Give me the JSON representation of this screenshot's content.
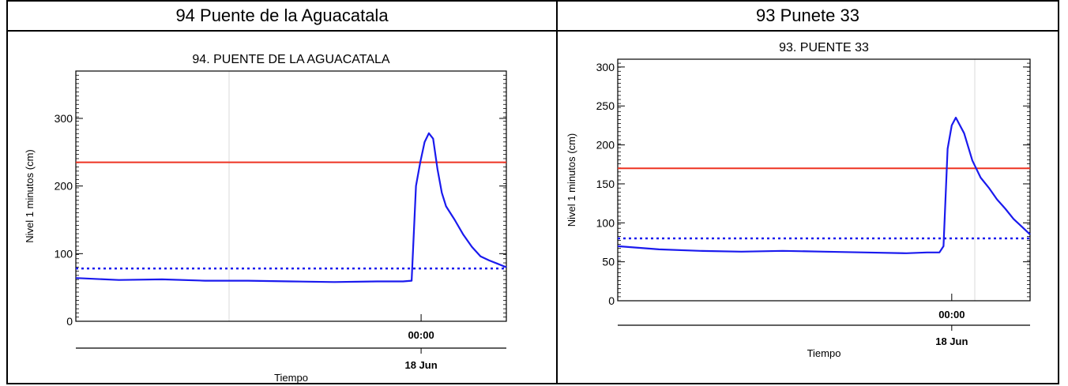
{
  "headers": {
    "left": "94 Puente de la Aguacatala",
    "right": "93 Punete 33"
  },
  "chart_data": [
    {
      "type": "line",
      "title": "94. PUENTE DE LA AGUACATALA",
      "ylabel": "Nivel 1 minutos (cm)",
      "xlabel": "Tiempo",
      "ylim": [
        0,
        370
      ],
      "yticks": [
        0,
        100,
        200,
        300
      ],
      "x_tick_time": "00:00",
      "x_tick_date": "18 Jun",
      "threshold_red": 235,
      "threshold_blue_dotted": 78,
      "series_color": "#1a1aee",
      "threshold_color": "#ee3322",
      "x": [
        0,
        0.1,
        0.2,
        0.3,
        0.4,
        0.5,
        0.6,
        0.7,
        0.76,
        0.78,
        0.79,
        0.8,
        0.81,
        0.82,
        0.83,
        0.84,
        0.85,
        0.86,
        0.88,
        0.9,
        0.92,
        0.94,
        0.96,
        0.98,
        1.0
      ],
      "values": [
        64,
        61,
        62,
        60,
        60,
        59,
        58,
        59,
        59,
        60,
        200,
        235,
        265,
        278,
        270,
        225,
        190,
        170,
        150,
        128,
        110,
        96,
        90,
        85,
        80
      ]
    },
    {
      "type": "line",
      "title": "93. PUENTE 33",
      "ylabel": "Nivel 1 minutos (cm)",
      "xlabel": "Tiempo",
      "ylim": [
        0,
        310
      ],
      "yticks": [
        0,
        50,
        100,
        150,
        200,
        250,
        300
      ],
      "x_tick_time": "00:00",
      "x_tick_date": "18 Jun",
      "threshold_red": 170,
      "threshold_blue_dotted": 80,
      "series_color": "#1a1aee",
      "threshold_color": "#ee3322",
      "x": [
        0,
        0.1,
        0.2,
        0.3,
        0.4,
        0.5,
        0.6,
        0.7,
        0.75,
        0.78,
        0.79,
        0.8,
        0.81,
        0.82,
        0.84,
        0.86,
        0.88,
        0.9,
        0.92,
        0.94,
        0.96,
        0.98,
        1.0
      ],
      "values": [
        70,
        66,
        64,
        63,
        64,
        63,
        62,
        61,
        62,
        62,
        70,
        195,
        225,
        235,
        215,
        180,
        158,
        145,
        130,
        118,
        105,
        95,
        85
      ]
    }
  ]
}
